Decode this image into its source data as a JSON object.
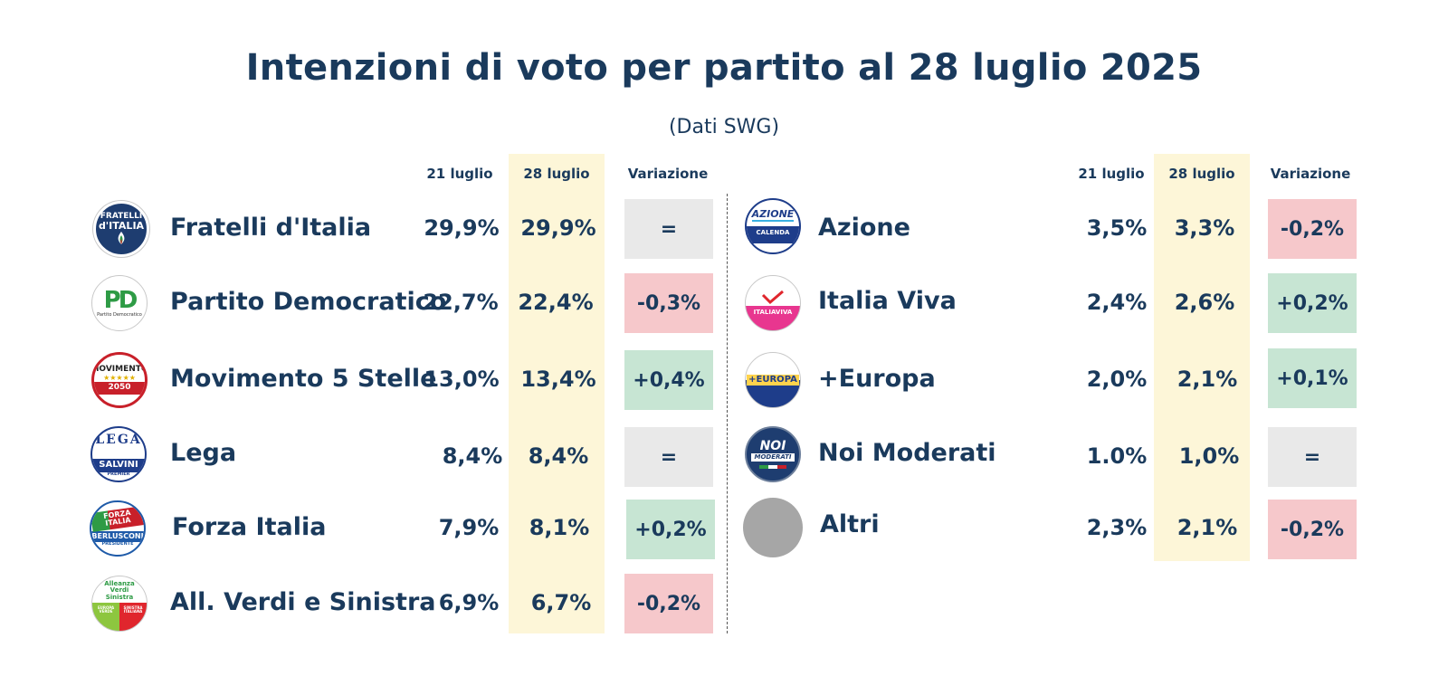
{
  "title": "Intenzioni di voto per partito al 28 luglio 2025",
  "subtitle": "(Dati SWG)",
  "headers": {
    "prev": "21 luglio",
    "curr": "28 luglio",
    "change": "Variazione"
  },
  "colors": {
    "highlight_column": "#fdf6d8",
    "positive": "#c7e5d3",
    "negative": "#f6c8cb",
    "neutral": "#e9e9e9",
    "text": "#1a3a5c"
  },
  "chart_data": {
    "type": "table",
    "title": "Intenzioni di voto per partito al 28 luglio 2025",
    "subtitle": "(Dati SWG)",
    "columns": [
      "21 luglio",
      "28 luglio",
      "Variazione"
    ],
    "rows": [
      {
        "party": "Fratelli d'Italia",
        "prev": "29,9%",
        "curr": "29,9%",
        "change": "=",
        "trend": "eq",
        "logo_icon": "fratelli-ditalia-logo",
        "logo_text": [
          "FRATELLI",
          "d'ITALIA"
        ]
      },
      {
        "party": "Partito Democratico",
        "prev": "22,7%",
        "curr": "22,4%",
        "change": "-0,3%",
        "trend": "neg",
        "logo_icon": "partito-democratico-logo",
        "logo_text": [
          "PD",
          "Partito Democratico"
        ]
      },
      {
        "party": "Movimento 5 Stelle",
        "prev": "13,0%",
        "curr": "13,4%",
        "change": "+0,4%",
        "trend": "pos",
        "logo_icon": "movimento-5-stelle-logo",
        "logo_text": [
          "MOVIMENTO",
          "★★★★★",
          "2050"
        ]
      },
      {
        "party": "Lega",
        "prev": "8,4%",
        "curr": "8,4%",
        "change": "=",
        "trend": "eq",
        "logo_icon": "lega-logo",
        "logo_text": [
          "LEGA",
          "SALVINI",
          "PREMIER"
        ]
      },
      {
        "party": "Forza Italia",
        "prev": "7,9%",
        "curr": "8,1%",
        "change": "+0,2%",
        "trend": "pos",
        "logo_icon": "forza-italia-logo",
        "logo_text": [
          "FORZA ITALIA",
          "BERLUSCONI",
          "PRESIDENTE"
        ]
      },
      {
        "party": "All. Verdi e Sinistra",
        "prev": "6,9%",
        "curr": "6,7%",
        "change": "-0,2%",
        "trend": "neg",
        "logo_icon": "avs-logo",
        "logo_text": [
          "Alleanza Verdi Sinistra",
          "EUROPA VERDE",
          "SINISTRA ITALIANA"
        ]
      },
      {
        "party": "Azione",
        "prev": "3,5%",
        "curr": "3,3%",
        "change": "-0,2%",
        "trend": "neg",
        "logo_icon": "azione-logo",
        "logo_text": [
          "AZIONE",
          "CALENDA"
        ]
      },
      {
        "party": "Italia Viva",
        "prev": "2,4%",
        "curr": "2,6%",
        "change": "+0,2%",
        "trend": "pos",
        "logo_icon": "italia-viva-logo",
        "logo_text": [
          "ITALIAVIVA"
        ]
      },
      {
        "party": "+Europa",
        "prev": "2,0%",
        "curr": "2,1%",
        "change": "+0,1%",
        "trend": "pos",
        "logo_icon": "piu-europa-logo",
        "logo_text": [
          "+EUROPA"
        ]
      },
      {
        "party": "Noi Moderati",
        "prev": "1.0%",
        "curr": "1,0%",
        "change": "=",
        "trend": "eq",
        "logo_icon": "noi-moderati-logo",
        "logo_text": [
          "NOI",
          "MODERATI"
        ]
      },
      {
        "party": "Altri",
        "prev": "2,3%",
        "curr": "2,1%",
        "change": "-0,2%",
        "trend": "neg",
        "logo_icon": "altri-placeholder-circle",
        "logo_text": []
      }
    ]
  }
}
